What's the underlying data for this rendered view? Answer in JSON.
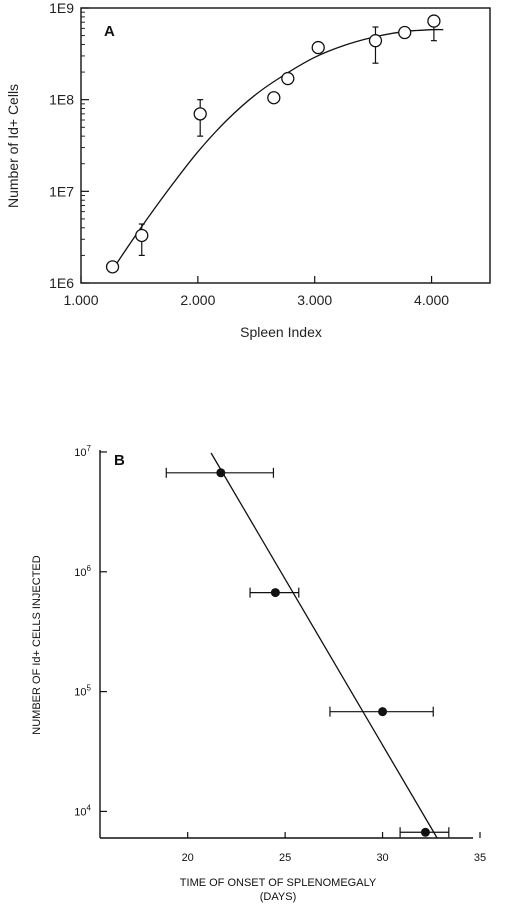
{
  "chart_data": [
    {
      "type": "scatter",
      "panel": "A",
      "xlabel": "Spleen Index",
      "ylabel": "Number of Id+ Cells",
      "xlim": [
        1.0,
        4.5
      ],
      "ylim": [
        1000000,
        1000000000
      ],
      "yscale": "log",
      "x_ticks": [
        1.0,
        2.0,
        3.0,
        4.0
      ],
      "x_tick_labels": [
        "1.000",
        "2.000",
        "3.000",
        "4.000"
      ],
      "y_ticks": [
        1000000,
        10000000,
        100000000,
        1000000000
      ],
      "y_tick_labels": [
        "1E6",
        "1E7",
        "1E8",
        "1E9"
      ],
      "points": [
        {
          "x": 1.27,
          "y": 1500000
        },
        {
          "x": 1.52,
          "y": 3300000,
          "err_low": 2000000,
          "err_high": 4400000
        },
        {
          "x": 2.02,
          "y": 70000000,
          "err_low": 40000000,
          "err_high": 100000000
        },
        {
          "x": 2.65,
          "y": 105000000
        },
        {
          "x": 2.77,
          "y": 170000000
        },
        {
          "x": 3.03,
          "y": 370000000
        },
        {
          "x": 3.52,
          "y": 440000000,
          "err_low": 250000000,
          "err_high": 620000000
        },
        {
          "x": 3.77,
          "y": 540000000
        },
        {
          "x": 4.02,
          "y": 720000000,
          "err_low": 440000000
        }
      ],
      "fit_curve": {
        "x": [
          1.27,
          1.5,
          1.75,
          2.0,
          2.25,
          2.5,
          2.75,
          3.0,
          3.25,
          3.5,
          3.75,
          4.0,
          4.1
        ],
        "y": [
          1400000,
          3800000,
          10500000,
          27000000,
          60000000,
          115000000,
          190000000,
          290000000,
          390000000,
          480000000,
          550000000,
          580000000,
          580000000
        ]
      }
    },
    {
      "type": "scatter",
      "panel": "B",
      "xlabel": "TIME OF ONSET OF SPLENOMEGALY",
      "xlabel2": "(DAYS)",
      "ylabel": "NUMBER OF Id+ CELLS INJECTED",
      "xlim": [
        15.5,
        35
      ],
      "ylim": [
        6000,
        11000000
      ],
      "yscale": "log",
      "x_ticks": [
        20,
        25,
        30,
        35
      ],
      "x_tick_labels": [
        "20",
        "25",
        "30",
        "35"
      ],
      "y_ticks": [
        10000,
        100000,
        1000000,
        10000000
      ],
      "y_tick_labels": [
        "10^4",
        "10^5",
        "10^6",
        "10^7"
      ],
      "points": [
        {
          "x": 21.7,
          "y": 6700000,
          "xerr_low": 18.9,
          "xerr_high": 24.4
        },
        {
          "x": 24.5,
          "y": 670000,
          "xerr_low": 23.2,
          "xerr_high": 25.7
        },
        {
          "x": 30.0,
          "y": 68000,
          "xerr_low": 27.3,
          "xerr_high": 32.6
        },
        {
          "x": 32.2,
          "y": 6700,
          "xerr_low": 30.9,
          "xerr_high": 33.4
        }
      ],
      "fit_line": {
        "x": [
          21.2,
          32.8
        ],
        "y": [
          9800000,
          6000
        ]
      }
    }
  ]
}
